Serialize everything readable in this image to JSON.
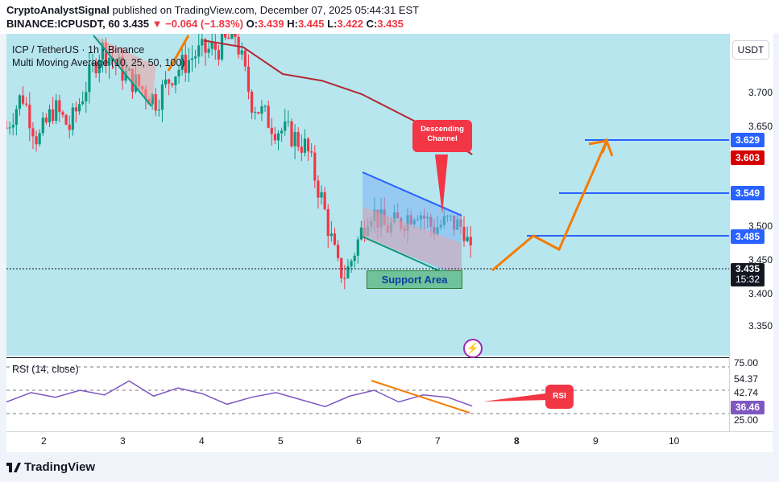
{
  "header": {
    "author": "CryptoAnalystSignal",
    "published_text": "published on TradingView.com, December 07, 2025 05:44:31 EST",
    "symbol_line": "BINANCE:ICPUSDT, 60",
    "last": "3.435",
    "change": "▼ −0.064 (−1.83%)",
    "o_label": "O:",
    "o": "3.439",
    "h_label": "H:",
    "h": "3.445",
    "l_label": "L:",
    "l": "3.422",
    "c_label": "C:",
    "c": "3.435"
  },
  "legend": {
    "title": "ICP / TetherUS · 1h · Binance",
    "indicator": "Multi Moving Average (10, 25, 50, 100)",
    "rsi": "RSI (14, close)"
  },
  "currency": "USDT",
  "price_axis": [
    "3.700",
    "3.650",
    "3.500",
    "3.450",
    "3.400",
    "3.350"
  ],
  "price_tags": {
    "t3629": "3.629",
    "t3603": "3.603",
    "t3549": "3.549",
    "t3485": "3.485",
    "current": "3.435",
    "countdown": "15:32"
  },
  "rsi_axis": [
    "75.00",
    "54.37",
    "42.74",
    "25.00"
  ],
  "rsi_value": "36.46",
  "time_axis": [
    "2",
    "3",
    "4",
    "5",
    "6",
    "7",
    "8",
    "9",
    "10"
  ],
  "annotations": {
    "descending": "Descending Channel",
    "support": "Support Area",
    "rsi": "RSI"
  },
  "footer": {
    "brand": "TradingView"
  },
  "colors": {
    "up": "#089981",
    "down": "#f23645",
    "ma": "#b22833",
    "accent": "#2962ff",
    "orange": "#f57c00",
    "rsi_line": "#7e57c2"
  },
  "chart_data": {
    "type": "candlestick",
    "symbol": "ICPUSDT",
    "interval": "60",
    "x_ticks": [
      "2",
      "3",
      "4",
      "5",
      "6",
      "7",
      "8",
      "9",
      "10"
    ],
    "y_ticks": [
      3.35,
      3.4,
      3.45,
      3.5,
      3.65,
      3.7
    ],
    "ylim": [
      3.3,
      3.78
    ],
    "close_path": [
      [
        1.5,
        3.64
      ],
      [
        1.7,
        3.69
      ],
      [
        1.9,
        3.62
      ],
      [
        2.1,
        3.67
      ],
      [
        2.3,
        3.64
      ],
      [
        2.5,
        3.7
      ],
      [
        2.7,
        3.76
      ],
      [
        3.0,
        3.72
      ],
      [
        3.4,
        3.68
      ],
      [
        3.6,
        3.72
      ],
      [
        3.9,
        3.75
      ],
      [
        4.2,
        3.76
      ],
      [
        4.4,
        3.78
      ],
      [
        4.6,
        3.68
      ],
      [
        4.9,
        3.64
      ],
      [
        5.1,
        3.63
      ],
      [
        5.3,
        3.61
      ],
      [
        5.5,
        3.53
      ],
      [
        5.7,
        3.43
      ],
      [
        5.8,
        3.42
      ],
      [
        5.95,
        3.47
      ],
      [
        6.1,
        3.52
      ],
      [
        6.3,
        3.49
      ],
      [
        6.5,
        3.5
      ],
      [
        6.7,
        3.52
      ],
      [
        6.9,
        3.49
      ],
      [
        7.1,
        3.5
      ],
      [
        7.3,
        3.49
      ],
      [
        7.4,
        3.435
      ]
    ],
    "moving_average_100": [
      [
        4.0,
        3.77
      ],
      [
        4.5,
        3.76
      ],
      [
        5.0,
        3.72
      ],
      [
        5.5,
        3.71
      ],
      [
        6.0,
        3.69
      ],
      [
        6.5,
        3.66
      ],
      [
        7.0,
        3.63
      ],
      [
        7.4,
        3.6
      ]
    ],
    "horizontal_levels": [
      3.629,
      3.549,
      3.485
    ],
    "projection_path": [
      [
        7.7,
        3.435
      ],
      [
        8.2,
        3.49
      ],
      [
        8.5,
        3.465
      ],
      [
        9.0,
        3.629
      ],
      [
        9.2,
        3.61
      ]
    ],
    "rsi": {
      "values": [
        40,
        48,
        44,
        50,
        46,
        58,
        45,
        52,
        47,
        38,
        44,
        48,
        42,
        36,
        45,
        50,
        40,
        46,
        44,
        36.46
      ],
      "levels": [
        70,
        50,
        30
      ]
    }
  }
}
